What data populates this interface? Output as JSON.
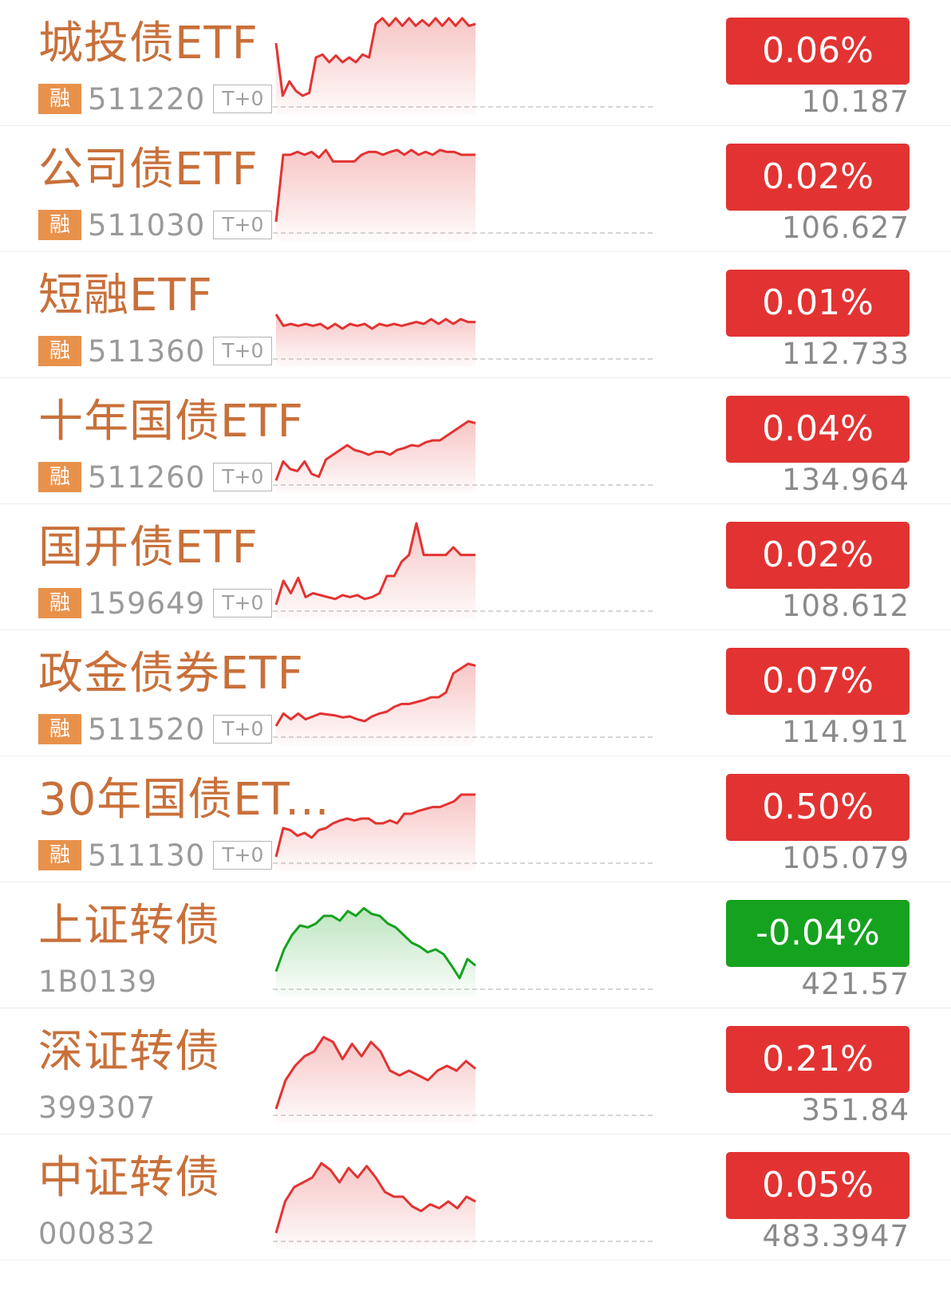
{
  "colors": {
    "up": "#e23332",
    "down": "#15a21e",
    "name": "#c8703a",
    "rong_badge": "#e8914b"
  },
  "rows": [
    {
      "name": "城投债ETF",
      "rong": "融",
      "code": "511220",
      "t0": "T+0",
      "change": "0.06%",
      "price": "10.187",
      "direction": "up",
      "line": [
        0.3,
        0.85,
        0.7,
        0.8,
        0.85,
        0.82,
        0.45,
        0.42,
        0.5,
        0.43,
        0.5,
        0.45,
        0.5,
        0.42,
        0.45,
        0.1,
        0.04,
        0.12,
        0.04,
        0.12,
        0.04,
        0.12,
        0.06,
        0.12,
        0.04,
        0.12,
        0.04,
        0.12,
        0.04,
        0.12,
        0.1
      ]
    },
    {
      "name": "公司债ETF",
      "rong": "融",
      "code": "511030",
      "t0": "T+0",
      "change": "0.02%",
      "price": "106.627",
      "direction": "up",
      "line": [
        0.85,
        0.15,
        0.15,
        0.12,
        0.15,
        0.12,
        0.18,
        0.1,
        0.22,
        0.22,
        0.22,
        0.22,
        0.15,
        0.12,
        0.12,
        0.15,
        0.12,
        0.1,
        0.15,
        0.1,
        0.15,
        0.12,
        0.15,
        0.1,
        0.12,
        0.12,
        0.15,
        0.15,
        0.15
      ]
    },
    {
      "name": "短融ETF",
      "rong": "融",
      "code": "511360",
      "t0": "T+0",
      "change": "0.01%",
      "price": "112.733",
      "direction": "up",
      "line": [
        0.5,
        0.62,
        0.6,
        0.62,
        0.6,
        0.62,
        0.6,
        0.65,
        0.6,
        0.65,
        0.6,
        0.62,
        0.6,
        0.65,
        0.6,
        0.62,
        0.6,
        0.62,
        0.6,
        0.58,
        0.6,
        0.55,
        0.6,
        0.55,
        0.6,
        0.55,
        0.58,
        0.58
      ]
    },
    {
      "name": "十年国债ETF",
      "rong": "融",
      "code": "511260",
      "t0": "T+0",
      "change": "0.04%",
      "price": "134.964",
      "direction": "up",
      "line": [
        0.92,
        0.72,
        0.8,
        0.82,
        0.72,
        0.85,
        0.88,
        0.7,
        0.65,
        0.6,
        0.55,
        0.6,
        0.62,
        0.65,
        0.62,
        0.62,
        0.65,
        0.6,
        0.58,
        0.55,
        0.56,
        0.52,
        0.5,
        0.5,
        0.45,
        0.4,
        0.35,
        0.3,
        0.32
      ]
    },
    {
      "name": "国开债ETF",
      "rong": "融",
      "code": "159649",
      "t0": "T+0",
      "change": "0.02%",
      "price": "108.612",
      "direction": "up",
      "line": [
        0.9,
        0.65,
        0.78,
        0.62,
        0.82,
        0.78,
        0.8,
        0.82,
        0.84,
        0.8,
        0.82,
        0.8,
        0.84,
        0.82,
        0.78,
        0.6,
        0.6,
        0.45,
        0.38,
        0.05,
        0.38,
        0.38,
        0.38,
        0.38,
        0.3,
        0.38,
        0.38,
        0.38
      ]
    },
    {
      "name": "政金债券ETF",
      "rong": "融",
      "code": "511520",
      "t0": "T+0",
      "change": "0.07%",
      "price": "114.911",
      "direction": "up",
      "line": [
        0.85,
        0.72,
        0.78,
        0.72,
        0.78,
        0.75,
        0.72,
        0.73,
        0.74,
        0.76,
        0.75,
        0.78,
        0.8,
        0.75,
        0.72,
        0.7,
        0.65,
        0.62,
        0.62,
        0.6,
        0.58,
        0.55,
        0.55,
        0.5,
        0.3,
        0.25,
        0.2,
        0.22
      ]
    },
    {
      "name": "30年国债ET...",
      "rong": "融",
      "code": "511130",
      "t0": "T+0",
      "change": "0.50%",
      "price": "105.079",
      "direction": "up",
      "line": [
        0.9,
        0.6,
        0.62,
        0.68,
        0.65,
        0.7,
        0.62,
        0.6,
        0.55,
        0.52,
        0.5,
        0.52,
        0.5,
        0.5,
        0.55,
        0.55,
        0.52,
        0.55,
        0.45,
        0.45,
        0.42,
        0.4,
        0.38,
        0.38,
        0.35,
        0.32,
        0.25,
        0.25,
        0.25
      ]
    },
    {
      "name": "上证转债",
      "rong": "",
      "code": "1B0139",
      "t0": "",
      "change": "-0.04%",
      "price": "421.57",
      "direction": "down",
      "line": [
        0.78,
        0.55,
        0.4,
        0.3,
        0.32,
        0.28,
        0.2,
        0.2,
        0.25,
        0.15,
        0.2,
        0.12,
        0.18,
        0.2,
        0.28,
        0.32,
        0.4,
        0.48,
        0.52,
        0.58,
        0.55,
        0.6,
        0.72,
        0.85,
        0.65,
        0.72
      ]
    },
    {
      "name": "深证转债",
      "rong": "",
      "code": "399307",
      "t0": "",
      "change": "0.21%",
      "price": "351.84",
      "direction": "up",
      "line": [
        0.9,
        0.6,
        0.45,
        0.35,
        0.3,
        0.15,
        0.2,
        0.38,
        0.22,
        0.35,
        0.2,
        0.3,
        0.5,
        0.55,
        0.5,
        0.55,
        0.6,
        0.5,
        0.45,
        0.5,
        0.4,
        0.48
      ]
    },
    {
      "name": "中证转债",
      "rong": "",
      "code": "000832",
      "t0": "",
      "change": "0.05%",
      "price": "483.3947",
      "direction": "up",
      "line": [
        0.88,
        0.55,
        0.4,
        0.35,
        0.3,
        0.15,
        0.22,
        0.35,
        0.2,
        0.3,
        0.18,
        0.3,
        0.45,
        0.5,
        0.5,
        0.6,
        0.65,
        0.58,
        0.62,
        0.55,
        0.62,
        0.5,
        0.55
      ]
    }
  ]
}
